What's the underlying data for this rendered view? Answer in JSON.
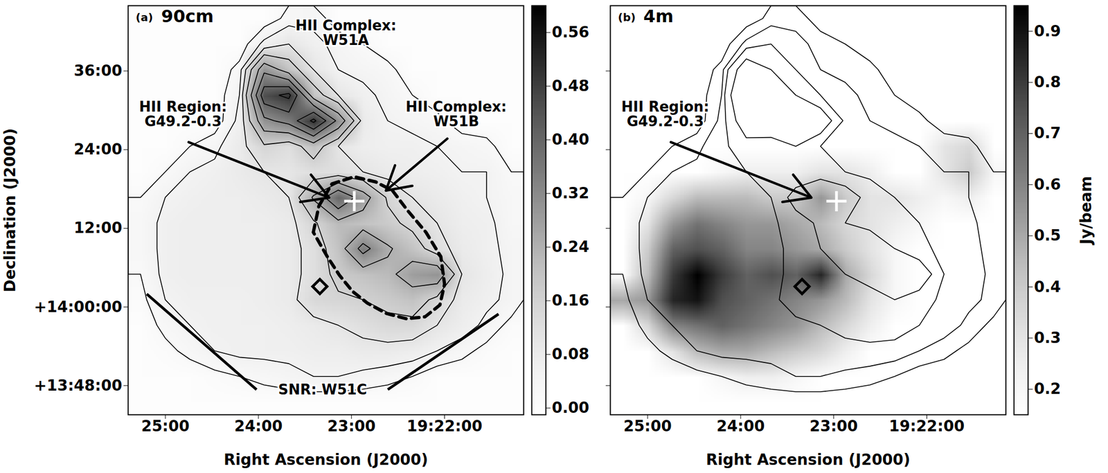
{
  "chart_data": [
    {
      "type": "image",
      "panel": "(a)",
      "title": "90cm",
      "x_label": "Right Ascension (J2000)",
      "y_label": "Declination (J2000)",
      "xlim": [
        1165.4,
        1161.15
      ],
      "ylim": [
        13.726,
        14.766
      ],
      "xticks": [
        {
          "value": 1165,
          "label": "25:00"
        },
        {
          "value": 1164,
          "label": "24:00"
        },
        {
          "value": 1163,
          "label": "23:00"
        },
        {
          "value": 1162,
          "label": "19:22:00"
        }
      ],
      "yticks": [
        {
          "value": 14.6,
          "label": "36:00"
        },
        {
          "value": 14.4,
          "label": "24:00"
        },
        {
          "value": 14.2,
          "label": "12:00"
        },
        {
          "value": 14.0,
          "label": "+14:00:00"
        },
        {
          "value": 13.8,
          "label": "+13:48:00"
        }
      ],
      "color": "greys",
      "image": {
        "grid": [
          [
            0,
            0,
            0,
            0,
            0,
            0,
            0.03,
            0.04,
            0,
            0,
            0,
            0,
            0,
            0,
            0,
            0
          ],
          [
            0,
            0,
            0,
            0,
            0,
            0.06,
            0.1,
            0.06,
            0.04,
            0.02,
            0,
            0,
            0,
            0,
            0,
            0
          ],
          [
            0,
            0,
            0,
            0,
            0.03,
            0.3,
            0.2,
            0.1,
            0.05,
            0.04,
            0.03,
            0,
            0,
            0,
            0,
            0
          ],
          [
            0,
            0,
            0,
            0,
            0.05,
            0.45,
            0.5,
            0.2,
            0.1,
            0.06,
            0.04,
            0.02,
            0,
            0,
            0,
            0
          ],
          [
            0,
            0,
            0,
            0,
            0.06,
            0.3,
            0.35,
            0.5,
            0.3,
            0.08,
            0.05,
            0.04,
            0.03,
            0,
            0,
            0
          ],
          [
            0,
            0,
            0.02,
            0.04,
            0.08,
            0.15,
            0.12,
            0.2,
            0.1,
            0.07,
            0.06,
            0.06,
            0.05,
            0.04,
            0.03,
            0
          ],
          [
            0,
            0.02,
            0.05,
            0.06,
            0.08,
            0.1,
            0.1,
            0.12,
            0.12,
            0.1,
            0.08,
            0.07,
            0.06,
            0.05,
            0.05,
            0.02
          ],
          [
            0.02,
            0.05,
            0.06,
            0.07,
            0.07,
            0.08,
            0.1,
            0.25,
            0.4,
            0.28,
            0.15,
            0.1,
            0.08,
            0.06,
            0.05,
            0.03
          ],
          [
            0.03,
            0.06,
            0.07,
            0.07,
            0.07,
            0.07,
            0.08,
            0.15,
            0.22,
            0.2,
            0.18,
            0.14,
            0.1,
            0.07,
            0.06,
            0.03
          ],
          [
            0.03,
            0.06,
            0.07,
            0.07,
            0.07,
            0.07,
            0.08,
            0.12,
            0.2,
            0.35,
            0.25,
            0.2,
            0.12,
            0.08,
            0.06,
            0.04
          ],
          [
            0.02,
            0.06,
            0.07,
            0.07,
            0.07,
            0.07,
            0.08,
            0.12,
            0.18,
            0.2,
            0.22,
            0.28,
            0.3,
            0.1,
            0.07,
            0.04
          ],
          [
            0.01,
            0.05,
            0.06,
            0.06,
            0.06,
            0.07,
            0.08,
            0.14,
            0.15,
            0.16,
            0.18,
            0.2,
            0.14,
            0.08,
            0.06,
            0.04
          ],
          [
            0,
            0.03,
            0.05,
            0.06,
            0.06,
            0.06,
            0.07,
            0.08,
            0.1,
            0.12,
            0.14,
            0.14,
            0.1,
            0.07,
            0.04,
            0.01
          ],
          [
            0,
            0.01,
            0.03,
            0.05,
            0.06,
            0.06,
            0.06,
            0.07,
            0.07,
            0.08,
            0.08,
            0.07,
            0.05,
            0.03,
            0.01,
            0
          ],
          [
            0,
            0,
            0,
            0.01,
            0.02,
            0.03,
            0.04,
            0.05,
            0.05,
            0.04,
            0.03,
            0.02,
            0,
            0,
            0,
            0
          ],
          [
            0,
            0,
            0,
            0,
            0,
            0,
            0,
            0,
            0,
            0,
            0,
            0,
            0,
            0,
            0,
            0
          ]
        ],
        "colorbar": {
          "range": [
            -0.01,
            0.6
          ],
          "ticks": [
            {
              "value": 0,
              "label": "0.00"
            },
            0.08,
            0.16,
            0.24,
            0.32,
            {
              "value": 0.4,
              "label": "0.40"
            },
            0.48,
            0.56
          ]
        }
      },
      "contours": {
        "source": "90cm",
        "levels": [
          0.02,
          0.05,
          0.1,
          0.16,
          0.24,
          0.32,
          0.4,
          0.48
        ]
      },
      "annotations": [
        {
          "text": "HII Complex:\nW51A",
          "x": 1163.06,
          "y": 14.697
        },
        {
          "text": "HII Region:\nG49.2-0.3",
          "x": 1164.81,
          "y": 14.49,
          "arrow": [
            1164.75,
            14.419,
            1163.24,
            14.278
          ]
        },
        {
          "text": "HII Complex:\nW51B",
          "x": 1161.875,
          "y": 14.49,
          "arrow": [
            1161.97,
            14.428,
            1162.63,
            14.296
          ]
        },
        {
          "text": "SNR: W51C",
          "x": 1163.31,
          "y": 13.79,
          "lines": [
            [
              1164.02,
              13.79,
              1165.2,
              14.033
            ],
            [
              1162.61,
              13.79,
              1161.42,
              13.982
            ]
          ]
        }
      ],
      "markers": [
        {
          "x": 1162.97,
          "y": 14.269,
          "marker": "plus",
          "color": "white"
        },
        {
          "x": 1163.34,
          "y": 14.052,
          "marker": "diamond",
          "color": "black"
        }
      ],
      "outline": {
        "line_style": "dashed",
        "color": "black",
        "x": [
          1163.41,
          1163.35,
          1163.21,
          1162.97,
          1162.74,
          1162.56,
          1162.4,
          1162.2,
          1162.04,
          1162.0,
          1162.05,
          1162.21,
          1162.41,
          1162.63,
          1162.83,
          1162.99,
          1163.13,
          1163.26,
          1163.41
        ],
        "y": [
          14.19,
          14.257,
          14.313,
          14.331,
          14.318,
          14.296,
          14.246,
          14.19,
          14.128,
          14.058,
          14.005,
          13.975,
          13.97,
          13.984,
          14.01,
          14.04,
          14.081,
          14.128,
          14.19
        ]
      }
    },
    {
      "type": "image",
      "panel": "(b)",
      "title": "4m",
      "x_label": "Right Ascension (J2000)",
      "xlim": [
        1165.4,
        1161.15
      ],
      "ylim": [
        13.726,
        14.766
      ],
      "xticks": [
        {
          "value": 1165,
          "label": "25:00"
        },
        {
          "value": 1164,
          "label": "24:00"
        },
        {
          "value": 1163,
          "label": "23:00"
        },
        {
          "value": 1162,
          "label": "19:22:00"
        }
      ],
      "yticks": [
        14.6,
        14.4,
        14.2,
        14.0,
        13.8
      ],
      "tick_labels": "x",
      "color": "greys",
      "image": {
        "grid": [
          [
            0.15,
            0.15,
            0.15,
            0.15,
            0.15,
            0.15,
            0.15,
            0.15,
            0.15,
            0.15,
            0.15,
            0.15,
            0.15,
            0.15,
            0.15,
            0.15
          ],
          [
            0.15,
            0.15,
            0.15,
            0.15,
            0.15,
            0.15,
            0.15,
            0.15,
            0.15,
            0.15,
            0.15,
            0.15,
            0.15,
            0.15,
            0.15,
            0.15
          ],
          [
            0.15,
            0.15,
            0.15,
            0.15,
            0.15,
            0.15,
            0.15,
            0.15,
            0.15,
            0.15,
            0.15,
            0.15,
            0.15,
            0.15,
            0.15,
            0.15
          ],
          [
            0.15,
            0.15,
            0.15,
            0.15,
            0.15,
            0.15,
            0.15,
            0.15,
            0.15,
            0.15,
            0.15,
            0.15,
            0.15,
            0.15,
            0.15,
            0.15
          ],
          [
            0.15,
            0.15,
            0.15,
            0.15,
            0.15,
            0.15,
            0.15,
            0.15,
            0.15,
            0.15,
            0.15,
            0.15,
            0.15,
            0.15,
            0.15,
            0.15
          ],
          [
            0.15,
            0.15,
            0.15,
            0.15,
            0.15,
            0.15,
            0.15,
            0.15,
            0.15,
            0.15,
            0.15,
            0.15,
            0.15,
            0.3,
            0.35,
            0.15
          ],
          [
            0.15,
            0.15,
            0.15,
            0.15,
            0.2,
            0.25,
            0.25,
            0.25,
            0.3,
            0.3,
            0.25,
            0.15,
            0.15,
            0.3,
            0.4,
            0.2
          ],
          [
            0.15,
            0.2,
            0.35,
            0.45,
            0.45,
            0.45,
            0.4,
            0.4,
            0.55,
            0.4,
            0.3,
            0.3,
            0.25,
            0.2,
            0.25,
            0.15
          ],
          [
            0.15,
            0.3,
            0.55,
            0.65,
            0.6,
            0.55,
            0.55,
            0.5,
            0.45,
            0.35,
            0.3,
            0.25,
            0.2,
            0.15,
            0.15,
            0.15
          ],
          [
            0.15,
            0.4,
            0.7,
            0.75,
            0.7,
            0.6,
            0.6,
            0.55,
            0.5,
            0.4,
            0.3,
            0.2,
            0.15,
            0.15,
            0.15,
            0.15
          ],
          [
            0.15,
            0.45,
            0.8,
            0.95,
            0.8,
            0.7,
            0.75,
            0.7,
            0.85,
            0.5,
            0.35,
            0.2,
            0.15,
            0.15,
            0.15,
            0.15
          ],
          [
            0.5,
            0.55,
            0.85,
            0.9,
            0.75,
            0.7,
            0.65,
            0.6,
            0.55,
            0.45,
            0.3,
            0.2,
            0.15,
            0.15,
            0.15,
            0.15
          ],
          [
            0.15,
            0.35,
            0.6,
            0.65,
            0.7,
            0.65,
            0.6,
            0.55,
            0.45,
            0.35,
            0.25,
            0.15,
            0.15,
            0.15,
            0.15,
            0.15
          ],
          [
            0.15,
            0.15,
            0.3,
            0.45,
            0.5,
            0.5,
            0.45,
            0.4,
            0.35,
            0.25,
            0.15,
            0.15,
            0.15,
            0.15,
            0.15,
            0.15
          ],
          [
            0.15,
            0.15,
            0.15,
            0.15,
            0.2,
            0.25,
            0.25,
            0.2,
            0.15,
            0.15,
            0.15,
            0.15,
            0.15,
            0.15,
            0.15,
            0.15
          ],
          [
            0.15,
            0.15,
            0.15,
            0.15,
            0.15,
            0.15,
            0.15,
            0.15,
            0.15,
            0.15,
            0.15,
            0.15,
            0.15,
            0.15,
            0.15,
            0.15
          ]
        ],
        "colorbar": {
          "range": [
            0.15,
            0.95
          ],
          "ticks": [
            0.2,
            0.3,
            0.4,
            0.5,
            0.6,
            0.7,
            0.8,
            0.9
          ],
          "label": "Jy/beam"
        }
      },
      "contours": {
        "source": "90cm",
        "levels": [
          0.02,
          0.05,
          0.1,
          0.2
        ]
      },
      "annotations": [
        {
          "text": "HII Region:\nG49.2-0.3",
          "x": 1164.81,
          "y": 14.49,
          "arrow": [
            1164.75,
            14.419,
            1163.24,
            14.278
          ]
        }
      ],
      "markers": [
        {
          "x": 1162.97,
          "y": 14.269,
          "marker": "plus",
          "color": "white"
        },
        {
          "x": 1163.34,
          "y": 14.052,
          "marker": "diamond",
          "color": "black"
        }
      ]
    }
  ]
}
